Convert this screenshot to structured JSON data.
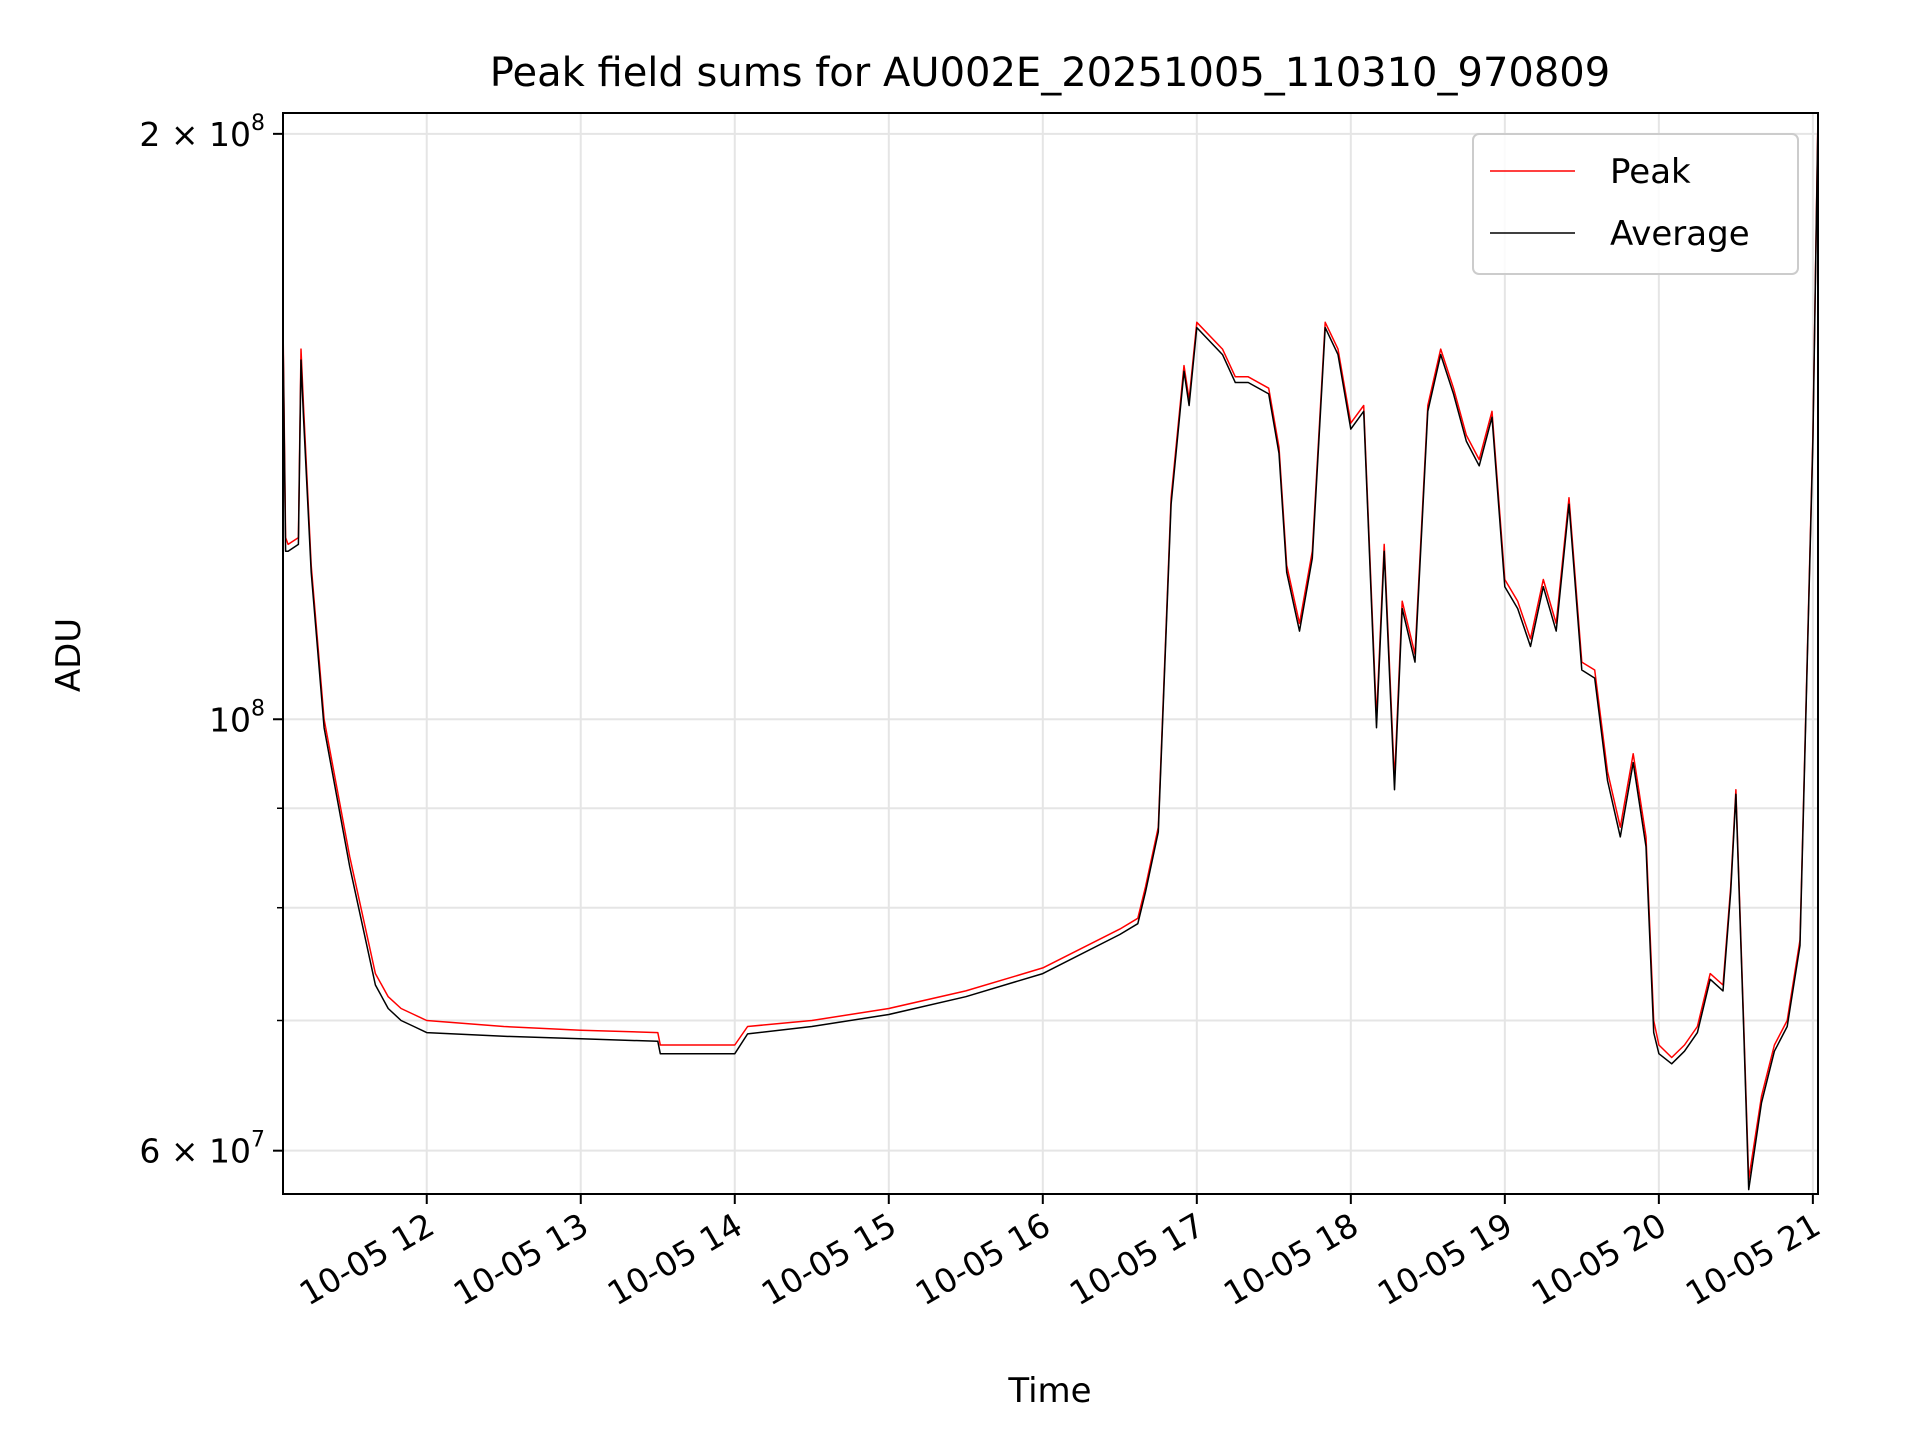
{
  "chart_data": {
    "type": "line",
    "title": "Peak field sums for AU002E_20251005_110310_970809",
    "xlabel": "Time",
    "ylabel": "ADU",
    "yscale": "log",
    "ylim": [
      57000000,
      205000000
    ],
    "xlim": [
      "10-05 11:04",
      "10-05 21:02"
    ],
    "grid": true,
    "legend_position": "top-right",
    "x_ticks": [
      "10-05 12",
      "10-05 13",
      "10-05 14",
      "10-05 15",
      "10-05 16",
      "10-05 17",
      "10-05 18",
      "10-05 19",
      "10-05 20",
      "10-05 21"
    ],
    "y_ticks": [
      {
        "value": 200000000,
        "base": "2 × 10",
        "exp": "8"
      },
      {
        "value": 100000000,
        "base": "10",
        "exp": "8"
      },
      {
        "value": 60000000,
        "base": "6 × 10",
        "exp": "7"
      }
    ],
    "y_minor_ticks": [
      70000000,
      80000000,
      90000000
    ],
    "x": [
      "10-05 11:04",
      "10-05 11:05",
      "10-05 11:06",
      "10-05 11:10",
      "10-05 11:11",
      "10-05 11:12",
      "10-05 11:15",
      "10-05 11:20",
      "10-05 11:30",
      "10-05 11:40",
      "10-05 11:45",
      "10-05 11:50",
      "10-05 11:55",
      "10-05 12:00",
      "10-05 12:30",
      "10-05 13:00",
      "10-05 13:30",
      "10-05 13:31",
      "10-05 14:00",
      "10-05 14:05",
      "10-05 14:30",
      "10-05 15:00",
      "10-05 15:30",
      "10-05 16:00",
      "10-05 16:30",
      "10-05 16:37",
      "10-05 16:40",
      "10-05 16:45",
      "10-05 16:50",
      "10-05 16:55",
      "10-05 16:57",
      "10-05 17:00",
      "10-05 17:10",
      "10-05 17:15",
      "10-05 17:20",
      "10-05 17:28",
      "10-05 17:32",
      "10-05 17:35",
      "10-05 17:40",
      "10-05 17:45",
      "10-05 17:50",
      "10-05 17:55",
      "10-05 18:00",
      "10-05 18:05",
      "10-05 18:10",
      "10-05 18:13",
      "10-05 18:17",
      "10-05 18:20",
      "10-05 18:25",
      "10-05 18:30",
      "10-05 18:35",
      "10-05 18:40",
      "10-05 18:45",
      "10-05 18:50",
      "10-05 18:55",
      "10-05 19:00",
      "10-05 19:05",
      "10-05 19:10",
      "10-05 19:15",
      "10-05 19:20",
      "10-05 19:25",
      "10-05 19:30",
      "10-05 19:35",
      "10-05 19:40",
      "10-05 19:45",
      "10-05 19:50",
      "10-05 19:55",
      "10-05 19:58",
      "10-05 20:00",
      "10-05 20:05",
      "10-05 20:10",
      "10-05 20:15",
      "10-05 20:20",
      "10-05 20:25",
      "10-05 20:28",
      "10-05 20:30",
      "10-05 20:33",
      "10-05 20:35",
      "10-05 20:40",
      "10-05 20:45",
      "10-05 20:50",
      "10-05 20:55",
      "10-05 21:00",
      "10-05 21:02"
    ],
    "series": [
      {
        "name": "Peak",
        "color": "#ff0000",
        "values": [
          160000000,
          124000000,
          123000000,
          124000000,
          155000000,
          145000000,
          120000000,
          100000000,
          85000000,
          74000000,
          72000000,
          71000000,
          70500000,
          70000000,
          69500000,
          69200000,
          69000000,
          68000000,
          68000000,
          69500000,
          70000000,
          71000000,
          72500000,
          74500000,
          78000000,
          79000000,
          82000000,
          88000000,
          130000000,
          152000000,
          146000000,
          160000000,
          155000000,
          150000000,
          150000000,
          148000000,
          138000000,
          120000000,
          112000000,
          122000000,
          160000000,
          155000000,
          142000000,
          145000000,
          100000000,
          123000000,
          93000000,
          115000000,
          108000000,
          145000000,
          155000000,
          148000000,
          140000000,
          136000000,
          144000000,
          118000000,
          115000000,
          110000000,
          118000000,
          112000000,
          130000000,
          107000000,
          106000000,
          94000000,
          88000000,
          96000000,
          87000000,
          70000000,
          68000000,
          67000000,
          68000000,
          69500000,
          74000000,
          73000000,
          82000000,
          92000000,
          70000000,
          58000000,
          64000000,
          68000000,
          70000000,
          77000000,
          140000000,
          205000000
        ]
      },
      {
        "name": "Average",
        "color": "#000000",
        "values": [
          158000000,
          122000000,
          122000000,
          123000000,
          153000000,
          143000000,
          119000000,
          99000000,
          84000000,
          73000000,
          71000000,
          70000000,
          69500000,
          69000000,
          68700000,
          68500000,
          68300000,
          67300000,
          67300000,
          68900000,
          69500000,
          70500000,
          72000000,
          74000000,
          77500000,
          78500000,
          81500000,
          87500000,
          129000000,
          151000000,
          145000000,
          159000000,
          154000000,
          149000000,
          149000000,
          147000000,
          137000000,
          119000000,
          111000000,
          121000000,
          159000000,
          154000000,
          141000000,
          144000000,
          99000000,
          122000000,
          92000000,
          114000000,
          107000000,
          144000000,
          154000000,
          147000000,
          139000000,
          135000000,
          143000000,
          117000000,
          114000000,
          109000000,
          117000000,
          111000000,
          129000000,
          106000000,
          105000000,
          93000000,
          87000000,
          95000000,
          86000000,
          69000000,
          67300000,
          66500000,
          67500000,
          69000000,
          73500000,
          72500000,
          81500000,
          91500000,
          69500000,
          57300000,
          63500000,
          67500000,
          69500000,
          76500000,
          139000000,
          204000000
        ]
      }
    ]
  }
}
